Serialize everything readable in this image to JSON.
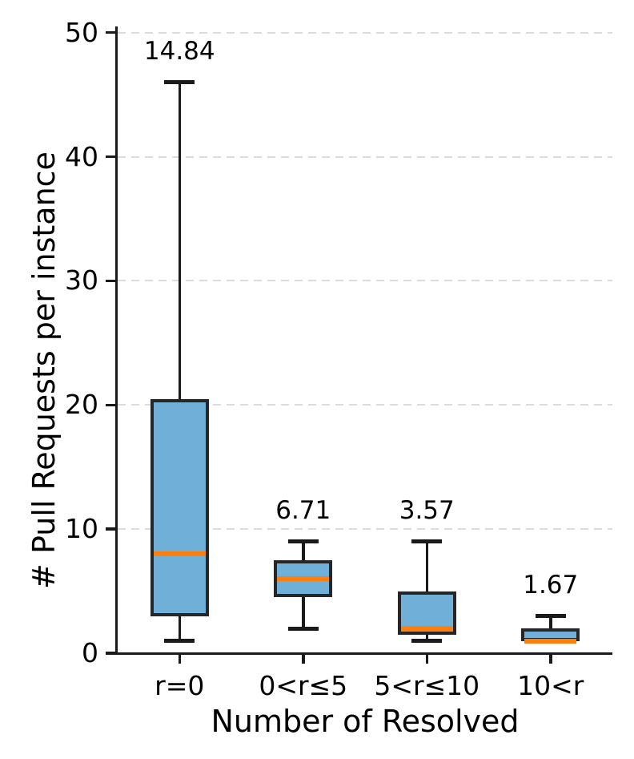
{
  "chart_data": {
    "type": "box",
    "title": "",
    "xlabel": "Number of Resolved",
    "ylabel": "# Pull Requests per instance",
    "ylim": [
      0,
      50.5
    ],
    "yticks": [
      0,
      10,
      20,
      30,
      40,
      50
    ],
    "grid": "horizontal-dashed",
    "legend": "none",
    "categories": [
      "r=0",
      "0<r≤5",
      "5<r≤10",
      "10<r"
    ],
    "boxes": [
      {
        "category": "r=0",
        "whisker_low": 1,
        "q1": 3,
        "median": 8,
        "q3": 20.5,
        "whisker_high": 46,
        "mean_label": "14.84"
      },
      {
        "category": "0<r≤5",
        "whisker_low": 2,
        "q1": 4.5,
        "median": 6,
        "q3": 7.5,
        "whisker_high": 9,
        "mean_label": "6.71"
      },
      {
        "category": "5<r≤10",
        "whisker_low": 1,
        "q1": 1.5,
        "median": 2,
        "q3": 5,
        "whisker_high": 9,
        "mean_label": "3.57"
      },
      {
        "category": "10<r",
        "whisker_low": 1,
        "q1": 1,
        "median": 1,
        "q3": 2,
        "whisker_high": 3,
        "mean_label": "1.67"
      }
    ],
    "colors": {
      "box_fill": "#6FAFD8",
      "box_edge": "#262626",
      "median": "#FF7F0E",
      "line": "#1a1a1a",
      "grid": "#dcdcdc",
      "text": "#000000",
      "background": "#ffffff"
    }
  }
}
